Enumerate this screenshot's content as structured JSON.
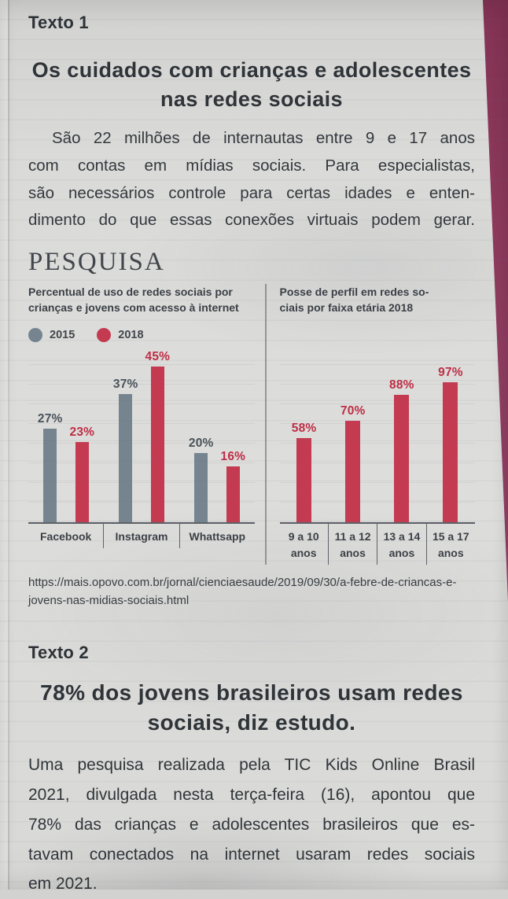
{
  "texto1": {
    "label": "Texto 1",
    "heading_lines": [
      "Os cuidados com crianças e",
      "adolescentes nas redes sociais"
    ],
    "paragraph_lines": [
      "São 22 milhões de internautas entre 9 e 17 anos",
      "com contas em mídias sociais. Para especialistas,",
      "são necessários controle para certas idades e enten-",
      "dimento do que essas conexões virtuais podem gerar."
    ]
  },
  "pesquisa": {
    "section_title": "PESQUISA",
    "source_url_lines": [
      "https://mais.opovo.com.br/jornal/cienciaesaude/2019/09/30/a-febre-de-criancas-e-",
      "jovens-nas-midias-sociais.html"
    ]
  },
  "chart_data": [
    {
      "type": "bar",
      "title": "Percentual de uso de redes sociais por crianças e jovens com acesso à internet",
      "title_lines": [
        "Percentual de uso de redes sociais por",
        "crianças e jovens com acesso à internet"
      ],
      "categories": [
        "Facebook",
        "Instagram",
        "Whattsapp"
      ],
      "series": [
        {
          "name": "2015",
          "color": "#75848f",
          "label_color": "#49525a",
          "values": [
            27,
            37,
            20
          ]
        },
        {
          "name": "2018",
          "color": "#c43a50",
          "label_color": "#bf2d46",
          "values": [
            23,
            45,
            16
          ]
        }
      ],
      "value_suffix": "%",
      "ylim": [
        0,
        50
      ],
      "grid": true,
      "legend_position": "top"
    },
    {
      "type": "bar",
      "title": "Posse de perfil em redes sociais por faixa etária 2018",
      "title_lines": [
        "Posse de perfil em redes so-",
        "ciais por faixa etária 2018"
      ],
      "categories": [
        "9 a 10 anos",
        "11 a 12 anos",
        "13 a 14 anos",
        "15 a 17 anos"
      ],
      "category_lines": [
        [
          "9 a 10",
          "anos"
        ],
        [
          "11 a 12",
          "anos"
        ],
        [
          "13 a 14",
          "anos"
        ],
        [
          "15 a 17",
          "anos"
        ]
      ],
      "series": [
        {
          "name": "2018",
          "color": "#c43a50",
          "label_color": "#bf2d46",
          "values": [
            58,
            70,
            88,
            97
          ]
        }
      ],
      "value_suffix": "%",
      "ylim": [
        0,
        120
      ],
      "grid": true,
      "legend_position": "none"
    }
  ],
  "texto2": {
    "label": "Texto 2",
    "heading_lines": [
      "78% dos jovens brasileiros usam",
      "redes sociais, diz estudo."
    ],
    "paragraph_lines": [
      "Uma pesquisa realizada pela TIC Kids Online Brasil",
      "2021, divulgada nesta terça-feira (16), apontou que",
      "78% das crianças e adolescentes brasileiros que es-",
      "tavam conectados na internet usaram redes sociais",
      "em 2021."
    ]
  },
  "colors": {
    "accent_red": "#c43a50",
    "bar_gray": "#75848f",
    "page_edge_maroon": "#8e3a5d",
    "text": "#33383d",
    "paper": "#dadad8"
  }
}
